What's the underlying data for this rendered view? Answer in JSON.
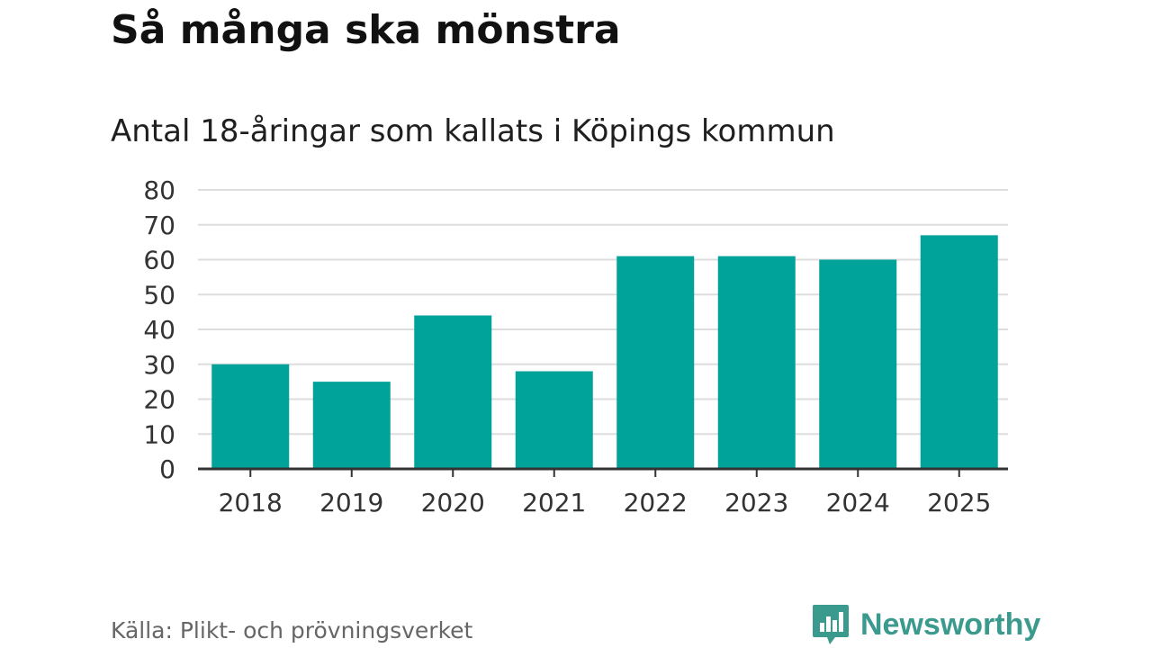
{
  "header": {
    "title": "Så många ska mönstra",
    "subtitle": "Antal 18-åringar som kallats i Köpings kommun"
  },
  "footer": {
    "source": "Källa: Plikt- och prövningsverket",
    "brand": "Newsworthy",
    "brand_icon": "newsworthy-logo-icon"
  },
  "colors": {
    "bar": "#00a399",
    "grid": "#dddddd",
    "axis": "#333333",
    "brand": "#3a9a8d"
  },
  "chart_data": {
    "type": "bar",
    "title": "Antal 18-åringar som kallats i Köpings kommun",
    "categories": [
      "2018",
      "2019",
      "2020",
      "2021",
      "2022",
      "2023",
      "2024",
      "2025"
    ],
    "values": [
      30,
      25,
      44,
      28,
      61,
      61,
      60,
      67
    ],
    "yticks": [
      0,
      10,
      20,
      30,
      40,
      50,
      60,
      70,
      80
    ],
    "ylim": [
      0,
      80
    ],
    "xlabel": "",
    "ylabel": "",
    "grid": true,
    "legend": "none"
  }
}
